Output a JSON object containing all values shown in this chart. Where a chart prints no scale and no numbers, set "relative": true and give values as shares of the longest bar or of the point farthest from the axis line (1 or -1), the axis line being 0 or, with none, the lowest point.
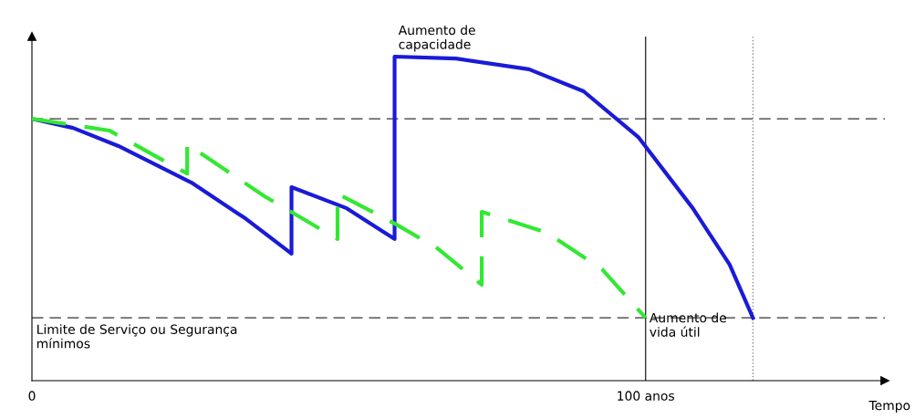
{
  "chart_data": {
    "type": "line",
    "relative": true,
    "xlabel": "Tempo",
    "xlim": [
      0,
      139
    ],
    "xticks": [
      0,
      {
        "value": 100,
        "label": "100 anos"
      }
    ],
    "series": [
      {
        "color": "#1a1ad8",
        "line_style": "solid",
        "x": [
          0,
          6.7,
          14.1,
          26.0,
          34.9,
          42.3,
          42.3,
          51.3,
          59.1,
          59.1,
          69.1,
          81.0,
          89.9,
          98.8,
          107.7,
          113.7,
          117.5
        ],
        "values": [
          0.808,
          0.78,
          0.724,
          0.611,
          0.499,
          0.392,
          0.597,
          0.532,
          0.437,
          1.0,
          0.994,
          0.961,
          0.893,
          0.752,
          0.532,
          0.358,
          0.194
        ]
      },
      {
        "color": "#33e833",
        "line_style": "dashed",
        "x": [
          0,
          12.6,
          25.3,
          25.3,
          37.9,
          49.8,
          49.8,
          59.1,
          66.1,
          73.3,
          73.3,
          84.0,
          92.9,
          100
        ],
        "values": [
          0.808,
          0.772,
          0.639,
          0.73,
          0.569,
          0.437,
          0.577,
          0.485,
          0.408,
          0.296,
          0.521,
          0.456,
          0.344,
          0.194
        ]
      }
    ],
    "ref_lines": [
      {
        "axis": "y",
        "value": 0.808,
        "line_style": "dashed",
        "color": "#333333"
      },
      {
        "axis": "y",
        "value": 0.194,
        "line_style": "dashed",
        "color": "#333333",
        "label": "Limite de Serviço ou Segurança\nmínimos"
      },
      {
        "axis": "x",
        "value": 100,
        "line_style": "solid",
        "color": "#333333"
      },
      {
        "axis": "x",
        "value": 117.5,
        "line_style": "dotted",
        "color": "#888888"
      }
    ],
    "annotations": [
      {
        "text": "Aumento de\ncapacidade",
        "x": 59.1,
        "y": 1.0
      },
      {
        "text": "Aumento de\nvida útil",
        "x": 100,
        "y": 0.194
      }
    ],
    "grid": false,
    "legend": false,
    "marker": "none"
  }
}
